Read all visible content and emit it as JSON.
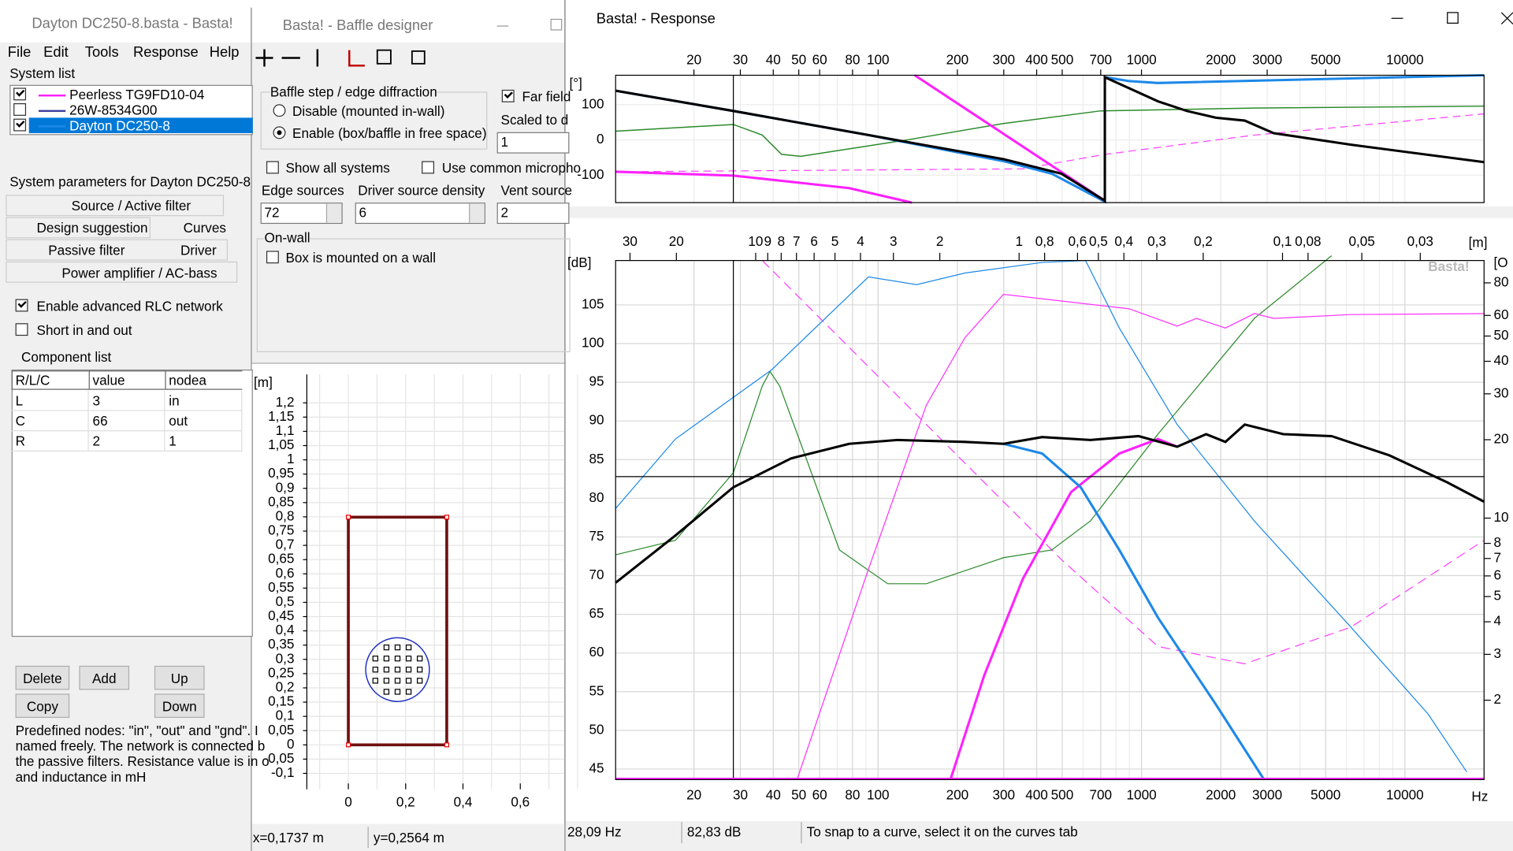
{
  "main_window": {
    "title": "Dayton DC250-8.basta - Basta!",
    "menu": [
      "File",
      "Edit",
      "Tools",
      "Response",
      "Help"
    ],
    "system_list_label": "System list",
    "systems": [
      "Peerless TG9FD10-04",
      "26W-8534G00",
      "Dayton DC250-8"
    ],
    "params_label": "System parameters for Dayton DC250-8",
    "tabs": [
      "Source / Active filter",
      "Design suggestion",
      "Curves",
      "Passive filter",
      "Driver",
      "Power amplifier / AC-bass"
    ],
    "checkboxes": [
      "Enable advanced RLC network",
      "Short in and out"
    ],
    "component_list_label": "Component list",
    "table": {
      "header": [
        "R/L/C",
        "value",
        "nodea"
      ],
      "rows": [
        [
          "L",
          "3",
          "in"
        ],
        [
          "C",
          "66",
          "out"
        ],
        [
          "R",
          "2",
          "1"
        ]
      ]
    },
    "buttons": [
      "Delete",
      "Add",
      "Up",
      "Copy",
      "Down"
    ],
    "help_text": [
      "Predefined nodes: \"in\", \"out\" and \"gnd\". I",
      "named freely. The network is connected b",
      "the passive filters. Resistance value is in o",
      "and inductance in mH"
    ]
  },
  "baffle_window": {
    "title": "Basta! - Baffle designer",
    "group_title": "Baffle step / edge diffraction",
    "radios": [
      "Disable (mounted in-wall)",
      "Enable (box/baffle in free space)"
    ],
    "far_field": "Far field",
    "scaled_label": "Scaled to d",
    "scaled_value": "1",
    "show_all": "Show all systems",
    "use_common": "Use common micropho",
    "fields": [
      {
        "label": "Edge sources",
        "value": "72"
      },
      {
        "label": "Driver source density",
        "value": "6"
      },
      {
        "label": "Vent source",
        "value": "2"
      }
    ],
    "onwall_title": "On-wall",
    "onwall_check": "Box is mounted on a wall",
    "unit": "[m]",
    "yticks": [
      "1,2",
      "1,15",
      "1,1",
      "1,05",
      "1",
      "0,95",
      "0,9",
      "0,85",
      "0,8",
      "0,75",
      "0,7",
      "0,65",
      "0,6",
      "0,55",
      "0,5",
      "0,45",
      "0,4",
      "0,35",
      "0,3",
      "0,25",
      "0,2",
      "0,15",
      "0,1",
      "0,05",
      "0",
      "-0,05",
      "-0,1"
    ],
    "xticks": [
      "0",
      "0,2",
      "0,4",
      "0,6"
    ],
    "status": [
      "x=0,1737 m",
      "y=0,2564 m"
    ]
  },
  "response_window": {
    "title": "Basta! - Response",
    "freq_ticks": [
      "20",
      "30",
      "40",
      "50",
      "60",
      "80",
      "100",
      "200",
      "300",
      "400",
      "500",
      "700",
      "1000",
      "2000",
      "3000",
      "5000",
      "10000"
    ],
    "phase_unit": "[°]",
    "phase_ticks": [
      "100",
      "0",
      "-100"
    ],
    "wavelength_ticks": [
      "30",
      "20",
      "10",
      "9",
      "8",
      "7",
      "6",
      "5",
      "4",
      "3",
      "2",
      "1",
      "0,8",
      "0,6",
      "0,5",
      "0,4",
      "0,3",
      "0,2",
      "0,1",
      "0,08",
      "0,05",
      "0,03"
    ],
    "wavelength_unit": "[m]",
    "db_unit": "[dB]",
    "db_ticks": [
      "105",
      "100",
      "95",
      "90",
      "85",
      "80",
      "75",
      "70",
      "65",
      "60",
      "55",
      "50",
      "45"
    ],
    "impedance_ticks": [
      "80",
      "60",
      "50",
      "40",
      "30",
      "20",
      "10",
      "8",
      "7",
      "6",
      "5",
      "4",
      "3",
      "2"
    ],
    "impedance_unit": "[O",
    "watermark": "Basta!",
    "hz": "Hz",
    "status": [
      "28,09 Hz",
      "82,83 dB",
      "To snap to a curve, select it on the curves tab"
    ]
  }
}
